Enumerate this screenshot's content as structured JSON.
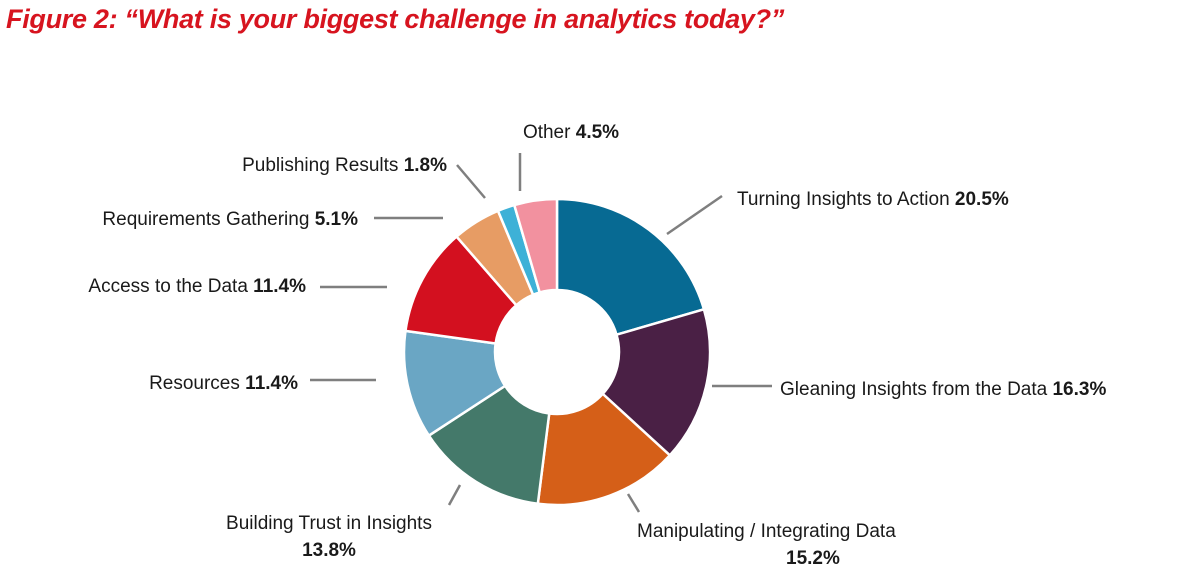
{
  "chart_data": {
    "type": "donut",
    "title": "Figure 2: “What is your biggest challenge in analytics today?”",
    "unit": "%",
    "slices": [
      {
        "label": "Turning Insights to Action",
        "value": 20.5,
        "value_text": "20.5%",
        "color": "#076a93"
      },
      {
        "label": "Gleaning Insights from the Data",
        "value": 16.3,
        "value_text": "16.3%",
        "color": "#4a2045"
      },
      {
        "label": "Manipulating / Integrating Data",
        "value": 15.2,
        "value_text": "15.2%",
        "color": "#d55f18"
      },
      {
        "label": "Building Trust in Insights",
        "value": 13.8,
        "value_text": "13.8%",
        "color": "#44796a"
      },
      {
        "label": "Resources",
        "value": 11.4,
        "value_text": "11.4%",
        "color": "#6aa6c4"
      },
      {
        "label": "Access to the Data",
        "value": 11.4,
        "value_text": "11.4%",
        "color": "#d3101f"
      },
      {
        "label": "Requirements Gathering",
        "value": 5.1,
        "value_text": "5.1%",
        "color": "#e79c64"
      },
      {
        "label": "Publishing Results",
        "value": 1.8,
        "value_text": "1.8%",
        "color": "#3db1d7"
      },
      {
        "label": "Other",
        "value": 4.5,
        "value_text": "4.5%",
        "color": "#f2919f"
      }
    ]
  }
}
